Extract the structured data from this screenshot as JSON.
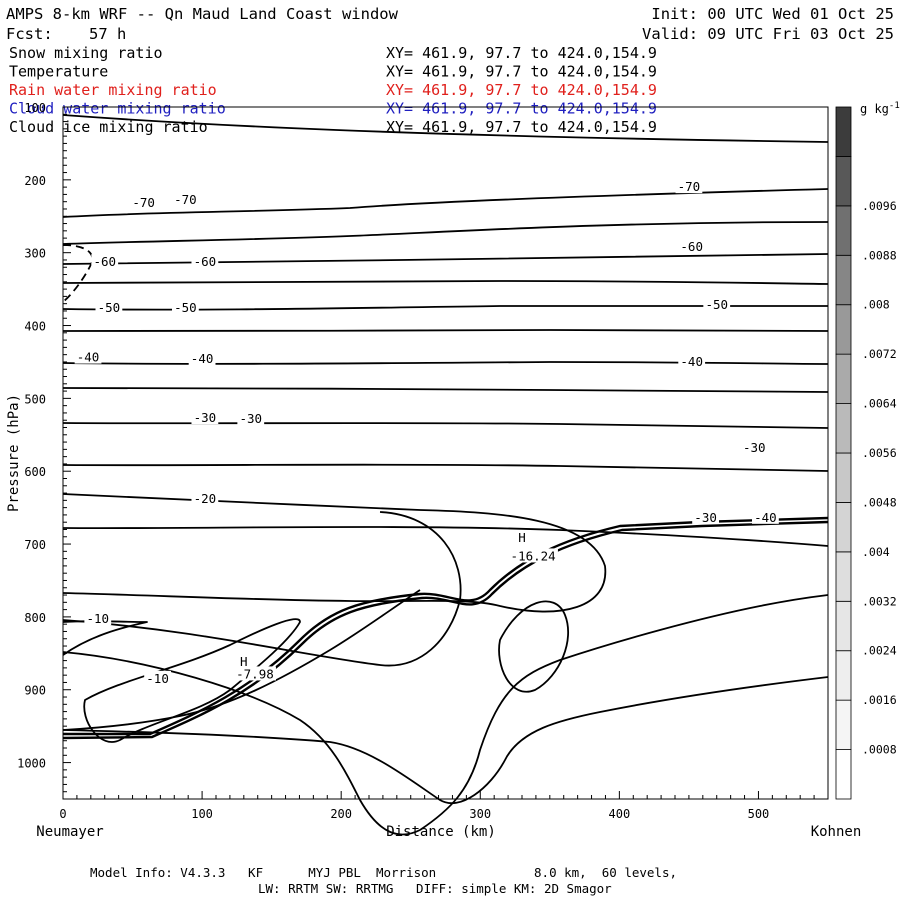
{
  "header": {
    "title": "AMPS 8-km WRF -- Qn Maud Land Coast window",
    "init": "Init: 00 UTC Wed 01 Oct 25",
    "fcst_label": "Fcst:",
    "fcst_value": "57 h",
    "valid": "Valid: 09 UTC Fri 03 Oct 25"
  },
  "legend": [
    {
      "name": "Snow mixing ratio",
      "xy": "XY= 461.9, 97.7 to 424.0,154.9",
      "color": "#000000"
    },
    {
      "name": "Temperature",
      "xy": "XY= 461.9, 97.7 to 424.0,154.9",
      "color": "#000000"
    },
    {
      "name": "Rain water mixing ratio",
      "xy": "XY= 461.9, 97.7 to 424.0,154.9",
      "color": "#e0201c"
    },
    {
      "name": "Cloud water mixing ratio",
      "xy": "XY= 461.9, 97.7 to 424.0,154.9",
      "color": "#2020c0"
    },
    {
      "name": "Cloud ice mixing ratio",
      "xy": "XY= 461.9, 97.7 to 424.0,154.9",
      "color": "#000000"
    }
  ],
  "footer": {
    "line1": "Model Info: V4.3.3   KF      MYJ PBL  Morrison             8.0 km,  60 levels,",
    "line2": "LW: RRTM SW: RRTMG   DIFF: simple KM: 2D Smagor"
  },
  "chart_data": {
    "type": "contour",
    "title": "AMPS 8-km WRF -- Qn Maud Land Coast window",
    "xlabel": "Distance (km)",
    "ylabel": "Pressure (hPa)",
    "xlim": [
      0,
      550
    ],
    "ylim": [
      1050,
      100
    ],
    "x_ticks": [
      0,
      100,
      200,
      300,
      400,
      500
    ],
    "y_ticks": [
      100,
      200,
      300,
      400,
      500,
      600,
      700,
      800,
      900,
      1000
    ],
    "x_start_label": "Neumayer",
    "x_end_label": "Kohnen",
    "colorbar": {
      "unit": "g kg",
      "unit_sup": "-1",
      "levels": [
        ".0008",
        ".0016",
        ".0024",
        ".0032",
        ".004",
        ".0048",
        ".0056",
        ".0064",
        ".0072",
        ".008",
        ".0088",
        ".0096"
      ],
      "shades": [
        "#ffffff",
        "#f5f5f5",
        "#eeeeee",
        "#e6e6e6",
        "#dedede",
        "#d4d4d4",
        "#c8c8c8",
        "#bababa",
        "#aaaaaa",
        "#999999",
        "#868686",
        "#707070",
        "#585858",
        "#3c3c3c"
      ]
    },
    "contour_labels": [
      {
        "text": "-70",
        "x": 58,
        "p": 232
      },
      {
        "text": "-70",
        "x": 88,
        "p": 228
      },
      {
        "text": "-70",
        "x": 450,
        "p": 210
      },
      {
        "text": "-60",
        "x": 30,
        "p": 313
      },
      {
        "text": "-60",
        "x": 102,
        "p": 313
      },
      {
        "text": "-60",
        "x": 452,
        "p": 292
      },
      {
        "text": "-50",
        "x": 33,
        "p": 376
      },
      {
        "text": "-50",
        "x": 88,
        "p": 376
      },
      {
        "text": "-50",
        "x": 470,
        "p": 372
      },
      {
        "text": "-40",
        "x": 18,
        "p": 444
      },
      {
        "text": "-40",
        "x": 100,
        "p": 446
      },
      {
        "text": "-40",
        "x": 452,
        "p": 450
      },
      {
        "text": "-30",
        "x": 102,
        "p": 527
      },
      {
        "text": "-30",
        "x": 135,
        "p": 528
      },
      {
        "text": "-30",
        "x": 497,
        "p": 568
      },
      {
        "text": "-20",
        "x": 102,
        "p": 638
      },
      {
        "text": "-10",
        "x": 25,
        "p": 803
      },
      {
        "text": "-10",
        "x": 68,
        "p": 885
      },
      {
        "text": "-30",
        "x": 462,
        "p": 664
      },
      {
        "text": "-40",
        "x": 505,
        "p": 664
      },
      {
        "text": "H",
        "x": 330,
        "p": 692
      },
      {
        "text": "-16.24",
        "x": 338,
        "p": 717
      },
      {
        "text": "H",
        "x": 130,
        "p": 862
      },
      {
        "text": "-7.98",
        "x": 138,
        "p": 879
      }
    ]
  }
}
